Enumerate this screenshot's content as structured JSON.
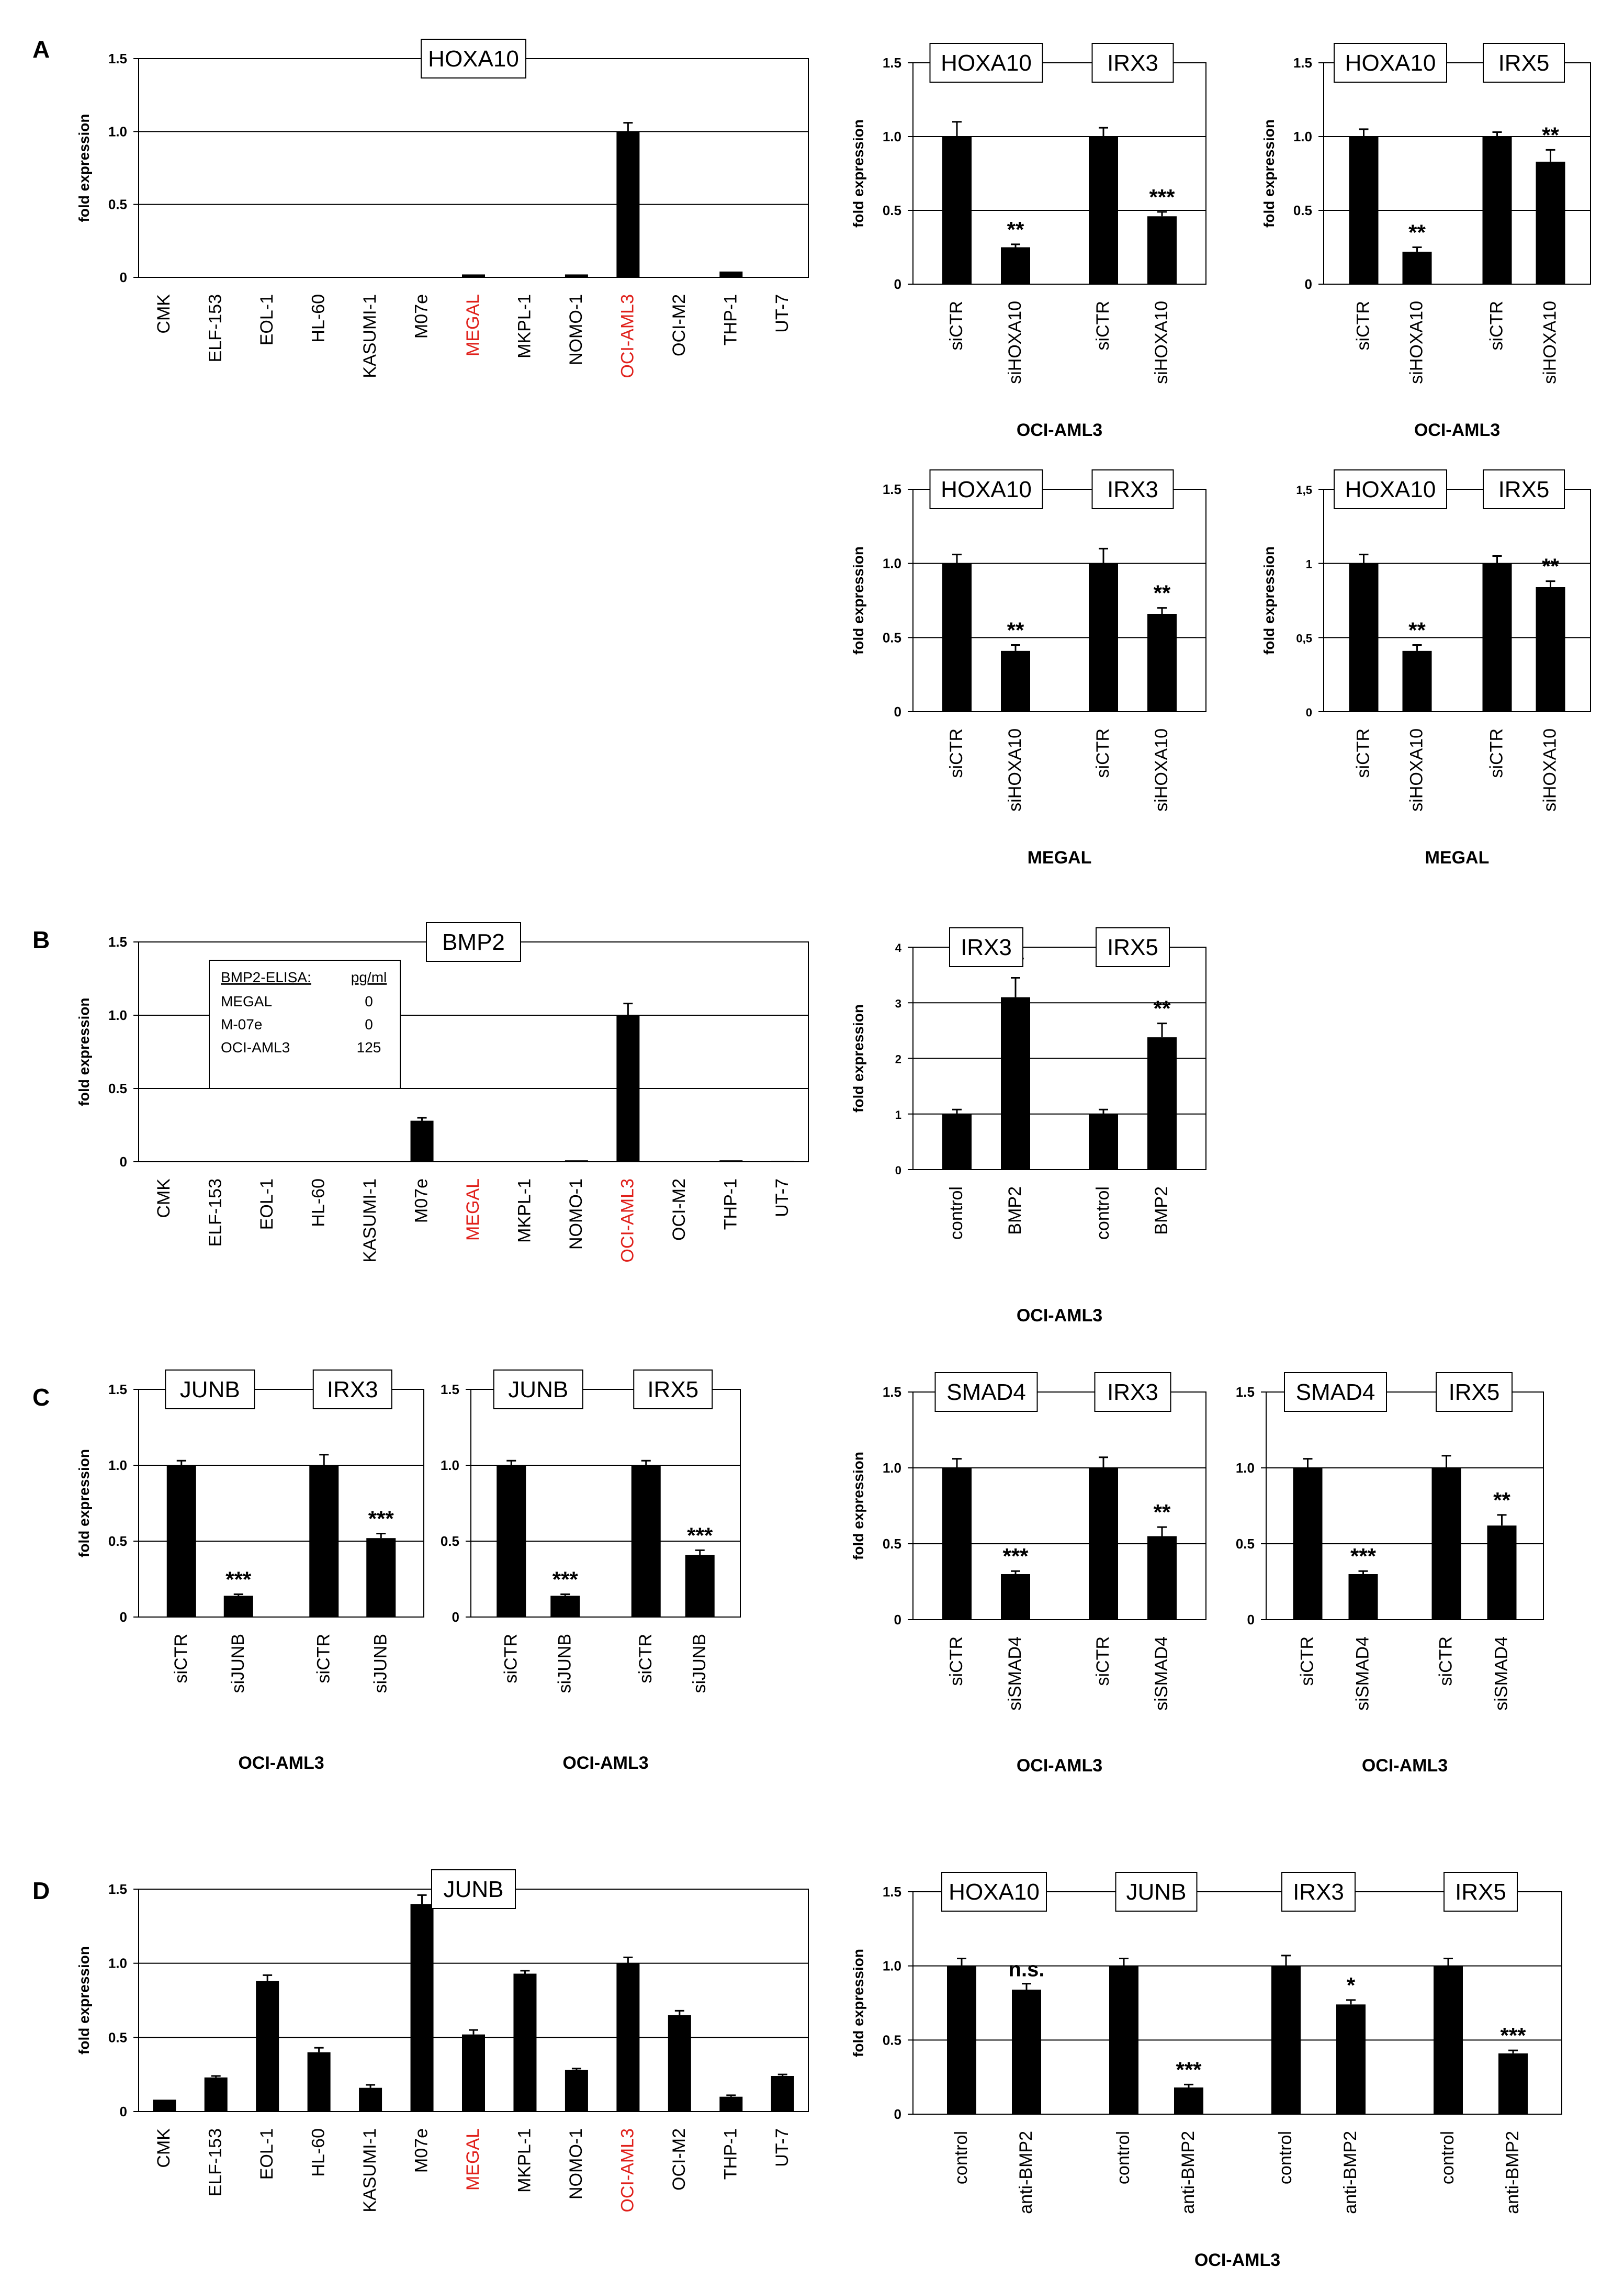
{
  "colors": {
    "bar": "#000000",
    "text": "#000000",
    "highlight": "#e0201b",
    "grid": "#000000"
  },
  "panel_letters": [
    "A",
    "B",
    "C",
    "D"
  ],
  "chart_data": [
    {
      "id": "A1",
      "panel": "A",
      "type": "bar",
      "box_labels": [
        "HOXA10"
      ],
      "ylabel": "fold expression",
      "ylim": [
        0,
        1.5
      ],
      "yticks": [
        "0",
        "0.5",
        "1.0",
        "1.5"
      ],
      "gridlines": [
        0.5,
        1.0
      ],
      "categories": [
        "CMK",
        "ELF-153",
        "EOL-1",
        "HL-60",
        "KASUMI-1",
        "M07e",
        "MEGAL",
        "MKPL-1",
        "NOMO-1",
        "OCI-AML3",
        "OCI-M2",
        "THP-1",
        "UT-7"
      ],
      "highlight_categories": [
        "MEGAL",
        "OCI-AML3"
      ],
      "values": [
        0,
        0,
        0,
        0,
        0,
        0,
        0.02,
        0,
        0.02,
        1.0,
        0,
        0.04,
        0
      ],
      "errors": [
        0,
        0,
        0,
        0,
        0,
        0,
        0,
        0,
        0,
        0.06,
        0,
        0,
        0
      ],
      "stars": [
        "",
        "",
        "",
        "",
        "",
        "",
        "",
        "",
        "",
        "",
        "",
        "",
        ""
      ],
      "xlabel": ""
    },
    {
      "id": "A2",
      "panel": "A",
      "type": "bar",
      "box_labels": [
        "HOXA10",
        "IRX3"
      ],
      "ylabel": "fold expression",
      "ylim": [
        0,
        1.5
      ],
      "yticks": [
        "0",
        "0.5",
        "1.0",
        "1.5"
      ],
      "gridlines": [
        0.5,
        1.0
      ],
      "categories": [
        "siCTR",
        "siHOXA10",
        "siCTR",
        "siHOXA10"
      ],
      "values": [
        1.0,
        0.25,
        1.0,
        0.46
      ],
      "errors": [
        0.1,
        0.02,
        0.06,
        0.03
      ],
      "stars": [
        "",
        "**",
        "",
        "***"
      ],
      "xlabel": "OCI-AML3"
    },
    {
      "id": "A3",
      "panel": "A",
      "type": "bar",
      "box_labels": [
        "HOXA10",
        "IRX5"
      ],
      "ylabel": "fold expression",
      "ylim": [
        0,
        1.5
      ],
      "yticks": [
        "0",
        "0.5",
        "1.0",
        "1.5"
      ],
      "gridlines": [
        0.5,
        1.0
      ],
      "categories": [
        "siCTR",
        "siHOXA10",
        "siCTR",
        "siHOXA10"
      ],
      "values": [
        1.0,
        0.22,
        1.0,
        0.83
      ],
      "errors": [
        0.05,
        0.03,
        0.03,
        0.08
      ],
      "stars": [
        "",
        "**",
        "",
        "**"
      ],
      "xlabel": "OCI-AML3"
    },
    {
      "id": "A4",
      "panel": "A",
      "type": "bar",
      "box_labels": [
        "HOXA10",
        "IRX3"
      ],
      "ylabel": "fold expression",
      "ylim": [
        0,
        1.5
      ],
      "yticks": [
        "0",
        "0.5",
        "1.0",
        "1.5"
      ],
      "gridlines": [
        0.5,
        1.0
      ],
      "categories": [
        "siCTR",
        "siHOXA10",
        "siCTR",
        "siHOXA10"
      ],
      "values": [
        1.0,
        0.41,
        1.0,
        0.66
      ],
      "errors": [
        0.06,
        0.04,
        0.1,
        0.04
      ],
      "stars": [
        "",
        "**",
        "",
        "**"
      ],
      "xlabel": "MEGAL"
    },
    {
      "id": "A5",
      "panel": "A",
      "type": "bar",
      "box_labels": [
        "HOXA10",
        "IRX5"
      ],
      "ylabel": "fold expression",
      "ylim": [
        0,
        1.5
      ],
      "yticks": [
        "0",
        "0,5",
        "1",
        "1,5"
      ],
      "gridlines": [
        0.5,
        1.0
      ],
      "categories": [
        "siCTR",
        "siHOXA10",
        "siCTR",
        "siHOXA10"
      ],
      "values": [
        1.0,
        0.41,
        1.0,
        0.84
      ],
      "errors": [
        0.06,
        0.04,
        0.05,
        0.04
      ],
      "stars": [
        "",
        "**",
        "",
        "**"
      ],
      "xlabel": "MEGAL"
    },
    {
      "id": "B1",
      "panel": "B",
      "type": "bar",
      "box_labels": [
        "BMP2"
      ],
      "ylabel": "fold expression",
      "ylim": [
        0,
        1.5
      ],
      "yticks": [
        "0",
        "0.5",
        "1.0",
        "1.5"
      ],
      "gridlines": [
        0.5,
        1.0
      ],
      "categories": [
        "CMK",
        "ELF-153",
        "EOL-1",
        "HL-60",
        "KASUMI-1",
        "M07e",
        "MEGAL",
        "MKPL-1",
        "NOMO-1",
        "OCI-AML3",
        "OCI-M2",
        "THP-1",
        "UT-7"
      ],
      "highlight_categories": [
        "MEGAL",
        "OCI-AML3"
      ],
      "values": [
        0,
        0,
        0,
        0,
        0,
        0.28,
        0,
        0,
        0.01,
        1.0,
        0,
        0.01,
        0.005
      ],
      "errors": [
        0,
        0,
        0,
        0,
        0,
        0.02,
        0,
        0,
        0,
        0.08,
        0,
        0,
        0
      ],
      "stars": [
        "",
        "",
        "",
        "",
        "",
        "",
        "",
        "",
        "",
        "",
        "",
        "",
        ""
      ],
      "xlabel": "",
      "inset_table": {
        "header": [
          "BMP2-ELISA:",
          "pg/ml"
        ],
        "rows": [
          [
            "MEGAL",
            "0"
          ],
          [
            "M-07e",
            "0"
          ],
          [
            "OCI-AML3",
            "125"
          ]
        ]
      }
    },
    {
      "id": "B2",
      "panel": "B",
      "type": "bar",
      "box_labels": [
        "IRX3",
        "IRX5"
      ],
      "ylabel": "fold expression",
      "ylim": [
        0,
        4
      ],
      "yticks": [
        "0",
        "1",
        "2",
        "3",
        "4"
      ],
      "gridlines": [
        1,
        2,
        3
      ],
      "categories": [
        "control",
        "BMP2",
        "control",
        "BMP2"
      ],
      "values": [
        1.0,
        3.1,
        1.0,
        2.38
      ],
      "errors": [
        0.08,
        0.35,
        0.08,
        0.25
      ],
      "stars": [
        "",
        "**",
        "",
        "**"
      ],
      "xlabel": "OCI-AML3"
    },
    {
      "id": "C1",
      "panel": "C",
      "type": "bar",
      "box_labels": [
        "JUNB",
        "IRX3"
      ],
      "ylabel": "fold expression",
      "ylim": [
        0,
        1.5
      ],
      "yticks": [
        "0",
        "0.5",
        "1.0",
        "1.5"
      ],
      "gridlines": [
        0.5,
        1.0
      ],
      "categories": [
        "siCTR",
        "siJUNB",
        "siCTR",
        "siJUNB"
      ],
      "values": [
        1.0,
        0.14,
        1.0,
        0.52
      ],
      "errors": [
        0.03,
        0.01,
        0.07,
        0.03
      ],
      "stars": [
        "",
        "***",
        "",
        "***"
      ],
      "xlabel": "OCI-AML3"
    },
    {
      "id": "C2",
      "panel": "C",
      "type": "bar",
      "box_labels": [
        "JUNB",
        "IRX5"
      ],
      "ylabel": "",
      "ylim": [
        0,
        1.5
      ],
      "yticks": [
        "0",
        "0.5",
        "1.0",
        "1.5"
      ],
      "gridlines": [
        0.5,
        1.0
      ],
      "categories": [
        "siCTR",
        "siJUNB",
        "siCTR",
        "siJUNB"
      ],
      "values": [
        1.0,
        0.14,
        1.0,
        0.41
      ],
      "errors": [
        0.03,
        0.01,
        0.03,
        0.03
      ],
      "stars": [
        "",
        "***",
        "",
        "***"
      ],
      "xlabel": "OCI-AML3"
    },
    {
      "id": "C3",
      "panel": "C",
      "type": "bar",
      "box_labels": [
        "SMAD4",
        "IRX3"
      ],
      "ylabel": "fold expression",
      "ylim": [
        0,
        1.5
      ],
      "yticks": [
        "0",
        "0.5",
        "1.0",
        "1.5"
      ],
      "gridlines": [
        0.5,
        1.0
      ],
      "categories": [
        "siCTR",
        "siSMAD4",
        "siCTR",
        "siSMAD4"
      ],
      "values": [
        1.0,
        0.3,
        1.0,
        0.55
      ],
      "errors": [
        0.06,
        0.02,
        0.07,
        0.06
      ],
      "stars": [
        "",
        "***",
        "",
        "**"
      ],
      "xlabel": "OCI-AML3"
    },
    {
      "id": "C4",
      "panel": "C",
      "type": "bar",
      "box_labels": [
        "SMAD4",
        "IRX5"
      ],
      "ylabel": "",
      "ylim": [
        0,
        1.5
      ],
      "yticks": [
        "0",
        "0.5",
        "1.0",
        "1.5"
      ],
      "gridlines": [
        0.5,
        1.0
      ],
      "categories": [
        "siCTR",
        "siSMAD4",
        "siCTR",
        "siSMAD4"
      ],
      "values": [
        1.0,
        0.3,
        1.0,
        0.62
      ],
      "errors": [
        0.06,
        0.02,
        0.08,
        0.07
      ],
      "stars": [
        "",
        "***",
        "",
        "**"
      ],
      "xlabel": "OCI-AML3"
    },
    {
      "id": "D1",
      "panel": "D",
      "type": "bar",
      "box_labels": [
        "JUNB"
      ],
      "ylabel": "fold expression",
      "ylim": [
        0,
        1.5
      ],
      "yticks": [
        "0",
        "0.5",
        "1.0",
        "1.5"
      ],
      "gridlines": [
        0.5,
        1.0
      ],
      "categories": [
        "CMK",
        "ELF-153",
        "EOL-1",
        "HL-60",
        "KASUMI-1",
        "M07e",
        "MEGAL",
        "MKPL-1",
        "NOMO-1",
        "OCI-AML3",
        "OCI-M2",
        "THP-1",
        "UT-7"
      ],
      "highlight_categories": [
        "MEGAL",
        "OCI-AML3"
      ],
      "values": [
        0.08,
        0.23,
        0.88,
        0.4,
        0.16,
        1.4,
        0.52,
        0.93,
        0.28,
        1.0,
        0.65,
        0.1,
        0.24
      ],
      "errors": [
        0,
        0.01,
        0.04,
        0.03,
        0.02,
        0.06,
        0.03,
        0.02,
        0.01,
        0.04,
        0.03,
        0.01,
        0.01
      ],
      "stars": [
        "",
        "",
        "",
        "",
        "",
        "",
        "",
        "",
        "",
        "",
        "",
        "",
        ""
      ],
      "xlabel": ""
    },
    {
      "id": "D2",
      "panel": "D",
      "type": "bar",
      "box_labels": [
        "HOXA10",
        "JUNB",
        "IRX3",
        "IRX5"
      ],
      "ylabel": "fold expression",
      "ylim": [
        0,
        1.5
      ],
      "yticks": [
        "0",
        "0.5",
        "1.0",
        "1.5"
      ],
      "gridlines": [
        0.5,
        1.0
      ],
      "categories": [
        "control",
        "anti-BMP2",
        "control",
        "anti-BMP2",
        "control",
        "anti-BMP2",
        "control",
        "anti-BMP2"
      ],
      "values": [
        1.0,
        0.84,
        1.0,
        0.18,
        1.0,
        0.74,
        1.0,
        0.41
      ],
      "errors": [
        0.05,
        0.04,
        0.05,
        0.02,
        0.07,
        0.03,
        0.05,
        0.02
      ],
      "stars": [
        "",
        "n.s.",
        "",
        "***",
        "",
        "*",
        "",
        "***"
      ],
      "xlabel": "OCI-AML3"
    }
  ]
}
